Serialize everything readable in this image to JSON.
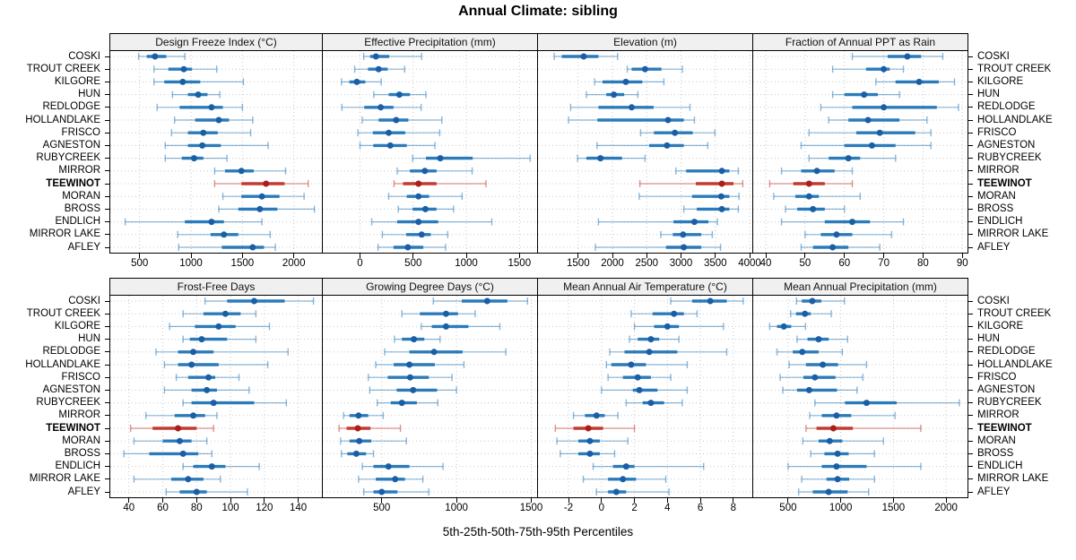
{
  "title": "Annual Climate: sibling",
  "caption": "5th-25th-50th-75th-95th Percentiles",
  "percentile_labels": [
    "5th",
    "25th",
    "50th",
    "75th",
    "95th"
  ],
  "sites": [
    "COSKI",
    "TROUT CREEK",
    "KILGORE",
    "HUN",
    "REDLODGE",
    "HOLLANDLAKE",
    "FRISCO",
    "AGNESTON",
    "RUBYCREEK",
    "MIRROR",
    "TEEWINOT",
    "MORAN",
    "BROSS",
    "ENDLICH",
    "MIRROR LAKE",
    "AFLEY"
  ],
  "highlight_site": "TEEWINOT",
  "colors": {
    "series_blue": "#2b7bba",
    "series_blue_dot": "#1a5fa6",
    "highlight_red": "#c23b31",
    "highlight_red_dot": "#a8201c",
    "grid": "#c8c8c8",
    "strip_bg": "#f0f0f0",
    "border": "#000000"
  },
  "chart_data": [
    {
      "type": "scatter",
      "mark": "dot-with-percentile-whiskers",
      "title": "Design Freeze Index (°C)",
      "row": 0,
      "col": 0,
      "xlim": [
        215,
        2273
      ],
      "ticks": [
        500,
        1000,
        1500,
        2000
      ],
      "values": [
        [
          490,
          570,
          650,
          760,
          940
        ],
        [
          640,
          780,
          930,
          1010,
          1250
        ],
        [
          640,
          740,
          920,
          1090,
          1510
        ],
        [
          820,
          970,
          1070,
          1160,
          1280
        ],
        [
          670,
          890,
          1200,
          1310,
          1500
        ],
        [
          840,
          1040,
          1270,
          1370,
          1600
        ],
        [
          810,
          970,
          1120,
          1260,
          1580
        ],
        [
          750,
          970,
          1110,
          1290,
          1750
        ],
        [
          750,
          910,
          1030,
          1120,
          1350
        ],
        [
          1230,
          1330,
          1490,
          1610,
          1920
        ],
        [
          1230,
          1490,
          1730,
          1910,
          2140
        ],
        [
          1310,
          1490,
          1690,
          1860,
          2100
        ],
        [
          1270,
          1460,
          1670,
          1840,
          2200
        ],
        [
          360,
          940,
          1200,
          1320,
          1690
        ],
        [
          870,
          1190,
          1320,
          1460,
          1770
        ],
        [
          880,
          1300,
          1600,
          1710,
          1820
        ]
      ]
    },
    {
      "type": "scatter",
      "mark": "dot-with-percentile-whiskers",
      "title": "Effective Precipitation (mm)",
      "row": 0,
      "col": 1,
      "xlim": [
        -350,
        1666
      ],
      "ticks": [
        0,
        500,
        1000,
        1500
      ],
      "values": [
        [
          35,
          95,
          150,
          275,
          580
        ],
        [
          -50,
          75,
          175,
          260,
          420
        ],
        [
          -175,
          -100,
          -30,
          50,
          200
        ],
        [
          130,
          270,
          370,
          470,
          620
        ],
        [
          -170,
          40,
          195,
          315,
          575
        ],
        [
          20,
          175,
          340,
          455,
          770
        ],
        [
          -20,
          120,
          270,
          425,
          750
        ],
        [
          0,
          125,
          285,
          440,
          705
        ],
        [
          495,
          620,
          755,
          1060,
          1600
        ],
        [
          350,
          470,
          610,
          720,
          1055
        ],
        [
          320,
          405,
          550,
          720,
          1185
        ],
        [
          270,
          440,
          550,
          650,
          960
        ],
        [
          360,
          495,
          615,
          720,
          880
        ],
        [
          110,
          350,
          550,
          735,
          1240
        ],
        [
          210,
          435,
          580,
          665,
          825
        ],
        [
          170,
          315,
          450,
          595,
          805
        ]
      ]
    },
    {
      "type": "scatter",
      "mark": "dot-with-percentile-whiskers",
      "title": "Elevation (m)",
      "row": 0,
      "col": 2,
      "xlim": [
        914,
        4039
      ],
      "ticks": [
        1500,
        2000,
        2500,
        3000,
        3500,
        4000
      ],
      "values": [
        [
          1150,
          1260,
          1580,
          1795,
          2075
        ],
        [
          2215,
          2280,
          2475,
          2715,
          3020
        ],
        [
          1740,
          1855,
          2195,
          2435,
          2750
        ],
        [
          1620,
          1910,
          2020,
          2170,
          2370
        ],
        [
          1390,
          1795,
          2280,
          2600,
          3130
        ],
        [
          1360,
          1780,
          2810,
          3040,
          3195
        ],
        [
          2410,
          2605,
          2910,
          3170,
          3495
        ],
        [
          1775,
          2535,
          2795,
          3040,
          3390
        ],
        [
          1490,
          1620,
          1825,
          2140,
          2475
        ],
        [
          2925,
          3075,
          3595,
          3705,
          3835
        ],
        [
          2400,
          3215,
          3595,
          3765,
          3900
        ],
        [
          2390,
          3160,
          3585,
          3705,
          3845
        ],
        [
          3040,
          3230,
          3595,
          3705,
          3835
        ],
        [
          1795,
          2890,
          3195,
          3400,
          3530
        ],
        [
          2705,
          2880,
          3030,
          3295,
          3455
        ],
        [
          1750,
          2780,
          3040,
          3295,
          3575
        ]
      ]
    },
    {
      "type": "scatter",
      "mark": "dot-with-percentile-whiskers",
      "title": "Fraction of Annual PPT as Rain",
      "row": 0,
      "col": 3,
      "xlim": [
        36.8,
        91.3
      ],
      "ticks": [
        40,
        50,
        60,
        70,
        80,
        90
      ],
      "values": [
        [
          62,
          71,
          76,
          79.5,
          85
        ],
        [
          57,
          65.5,
          70,
          71.5,
          75
        ],
        [
          68,
          73,
          79,
          84,
          88
        ],
        [
          57,
          60,
          65,
          68.5,
          74
        ],
        [
          54,
          62,
          70,
          83.5,
          89
        ],
        [
          56,
          61,
          66,
          74,
          81
        ],
        [
          51,
          63,
          69,
          78,
          82
        ],
        [
          49,
          60,
          67,
          73,
          82
        ],
        [
          51,
          56,
          61,
          64,
          73
        ],
        [
          44,
          49,
          53,
          57.5,
          62
        ],
        [
          41,
          47,
          51,
          55,
          62
        ],
        [
          42,
          47.5,
          51,
          53.5,
          64
        ],
        [
          45,
          48,
          52,
          55,
          60
        ],
        [
          44,
          55,
          62,
          66.5,
          75
        ],
        [
          50,
          54,
          58,
          62,
          72
        ],
        [
          49,
          52,
          57,
          61,
          69
        ]
      ]
    },
    {
      "type": "scatter",
      "mark": "dot-with-percentile-whiskers",
      "title": "Frost-Free Days",
      "row": 1,
      "col": 0,
      "xlim": [
        29,
        154
      ],
      "ticks": [
        40,
        60,
        80,
        100,
        120,
        140
      ],
      "values": [
        [
          85,
          98,
          114,
          132,
          149
        ],
        [
          72,
          84,
          97,
          106,
          115
        ],
        [
          64,
          79,
          93,
          103,
          123
        ],
        [
          72,
          76,
          83,
          98,
          115
        ],
        [
          56,
          69,
          78,
          90,
          134
        ],
        [
          61,
          69,
          77,
          93,
          122
        ],
        [
          68,
          75,
          87,
          91,
          105
        ],
        [
          61,
          77,
          86,
          92,
          111
        ],
        [
          72,
          77,
          90,
          114,
          133
        ],
        [
          50,
          67,
          78,
          85,
          92
        ],
        [
          41,
          54,
          69,
          80,
          90
        ],
        [
          43,
          60,
          70,
          77,
          86
        ],
        [
          37,
          52,
          72,
          81,
          89
        ],
        [
          72,
          78,
          89,
          97,
          117
        ],
        [
          43,
          65,
          75,
          84,
          94
        ],
        [
          62,
          70,
          80,
          86,
          110
        ]
      ]
    },
    {
      "type": "scatter",
      "mark": "dot-with-percentile-whiskers",
      "title": "Growing Degree Days (°C)",
      "row": 1,
      "col": 1,
      "xlim": [
        106,
        1539
      ],
      "ticks": [
        500,
        1000,
        1500
      ],
      "values": [
        [
          845,
          1035,
          1205,
          1340,
          1475
        ],
        [
          635,
          755,
          930,
          1010,
          1125
        ],
        [
          765,
          835,
          930,
          1080,
          1290
        ],
        [
          585,
          635,
          715,
          785,
          890
        ],
        [
          520,
          685,
          850,
          1040,
          1330
        ],
        [
          460,
          580,
          685,
          855,
          1050
        ],
        [
          410,
          540,
          690,
          815,
          970
        ],
        [
          420,
          600,
          710,
          870,
          1000
        ],
        [
          470,
          560,
          635,
          735,
          875
        ],
        [
          245,
          285,
          345,
          410,
          510
        ],
        [
          215,
          265,
          340,
          425,
          625
        ],
        [
          225,
          285,
          350,
          430,
          665
        ],
        [
          230,
          270,
          330,
          395,
          445
        ],
        [
          370,
          445,
          545,
          685,
          910
        ],
        [
          345,
          460,
          590,
          655,
          775
        ],
        [
          380,
          445,
          500,
          605,
          815
        ]
      ]
    },
    {
      "type": "scatter",
      "mark": "dot-with-percentile-whiskers",
      "title": "Mean Annual Air Temperature (°C)",
      "row": 1,
      "col": 2,
      "xlim": [
        -3.85,
        9.15
      ],
      "ticks": [
        -2,
        0,
        2,
        4,
        6,
        8
      ],
      "values": [
        [
          4.2,
          5.5,
          6.6,
          7.6,
          8.6
        ],
        [
          1.8,
          3.1,
          4.4,
          5.0,
          5.8
        ],
        [
          2.0,
          3.2,
          4.0,
          4.7,
          7.4
        ],
        [
          1.7,
          2.2,
          3.0,
          3.5,
          4.7
        ],
        [
          0.5,
          1.4,
          2.9,
          4.6,
          7.6
        ],
        [
          0.3,
          0.6,
          1.8,
          2.7,
          5.2
        ],
        [
          0.4,
          1.3,
          2.2,
          3.0,
          4.2
        ],
        [
          0.0,
          1.9,
          2.3,
          3.4,
          5.2
        ],
        [
          1.5,
          2.5,
          3.0,
          3.8,
          4.9
        ],
        [
          -1.7,
          -1.0,
          -0.3,
          0.2,
          1.0
        ],
        [
          -2.8,
          -1.7,
          -0.8,
          0.1,
          2.0
        ],
        [
          -2.7,
          -1.4,
          -0.7,
          -0.1,
          1.6
        ],
        [
          -2.5,
          -1.4,
          -0.7,
          -0.1,
          0.8
        ],
        [
          -0.5,
          0.7,
          1.5,
          2.0,
          6.2
        ],
        [
          -1.1,
          0.4,
          1.3,
          2.1,
          3.9
        ],
        [
          -0.3,
          0.4,
          0.9,
          1.5,
          4.1
        ]
      ]
    },
    {
      "type": "scatter",
      "mark": "dot-with-percentile-whiskers",
      "title": "Mean Annual Precipitation (mm)",
      "row": 1,
      "col": 3,
      "xlim": [
        169,
        2203
      ],
      "ticks": [
        500,
        1000,
        1500,
        2000
      ],
      "values": [
        [
          580,
          630,
          730,
          815,
          1035
        ],
        [
          525,
          575,
          660,
          715,
          910
        ],
        [
          325,
          395,
          460,
          530,
          665
        ],
        [
          585,
          685,
          790,
          885,
          1065
        ],
        [
          395,
          545,
          635,
          790,
          1015
        ],
        [
          510,
          670,
          830,
          975,
          1245
        ],
        [
          425,
          645,
          755,
          950,
          1210
        ],
        [
          450,
          585,
          700,
          965,
          1155
        ],
        [
          755,
          1040,
          1245,
          1530,
          2125
        ],
        [
          705,
          820,
          960,
          1100,
          1515
        ],
        [
          670,
          770,
          930,
          1115,
          1760
        ],
        [
          640,
          790,
          895,
          1015,
          1405
        ],
        [
          715,
          845,
          970,
          1075,
          1320
        ],
        [
          500,
          820,
          960,
          1245,
          1760
        ],
        [
          630,
          865,
          970,
          1080,
          1320
        ],
        [
          600,
          735,
          885,
          1065,
          1265
        ]
      ]
    }
  ]
}
